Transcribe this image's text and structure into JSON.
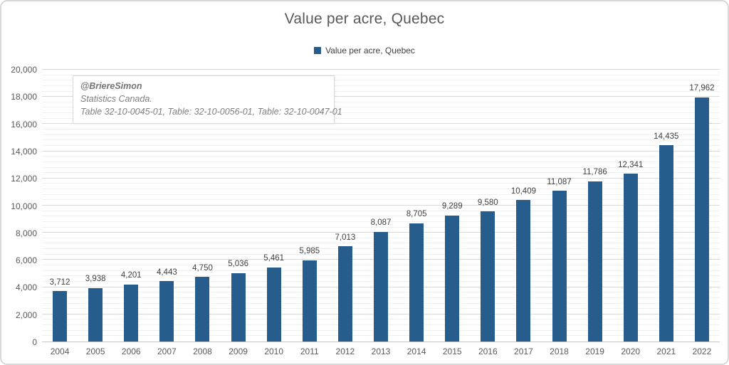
{
  "chart": {
    "title": "Value per acre, Quebec",
    "legend": {
      "label": "Value per acre, Quebec",
      "marker_color": "#265d8c"
    },
    "annotation": {
      "line1": "@BriereSimon",
      "line2": "Statistics Canada.",
      "line3": "Table 32-10-0045-01, Table: 32-10-0056-01, Table: 32-10-0047-01"
    }
  },
  "chart_data": {
    "type": "bar",
    "title": "Value per acre, Quebec",
    "series": [
      {
        "name": "Value per acre, Quebec",
        "values": [
          3712,
          3938,
          4201,
          4443,
          4750,
          5036,
          5461,
          5985,
          7013,
          8087,
          8705,
          9289,
          9580,
          10409,
          11087,
          11786,
          12341,
          14435,
          17962
        ]
      }
    ],
    "categories": [
      "2004",
      "2005",
      "2006",
      "2007",
      "2008",
      "2009",
      "2010",
      "2011",
      "2012",
      "2013",
      "2014",
      "2015",
      "2016",
      "2017",
      "2018",
      "2019",
      "2020",
      "2021",
      "2022"
    ],
    "xlabel": "",
    "ylabel": "",
    "ylim": [
      0,
      20000
    ],
    "y_major_step": 2000,
    "y_minor_step": 400,
    "grid": true,
    "data_labels": true,
    "legend_position": "top",
    "bar_color": "#265d8c"
  },
  "colors": {
    "bar": "#265d8c",
    "title_text": "#595959",
    "axis_text": "#595959",
    "data_label_text": "#404040",
    "gridline_major": "#d9d9d9",
    "gridline_minor": "#f0f0f0",
    "frame_border": "#d9d9d9"
  }
}
